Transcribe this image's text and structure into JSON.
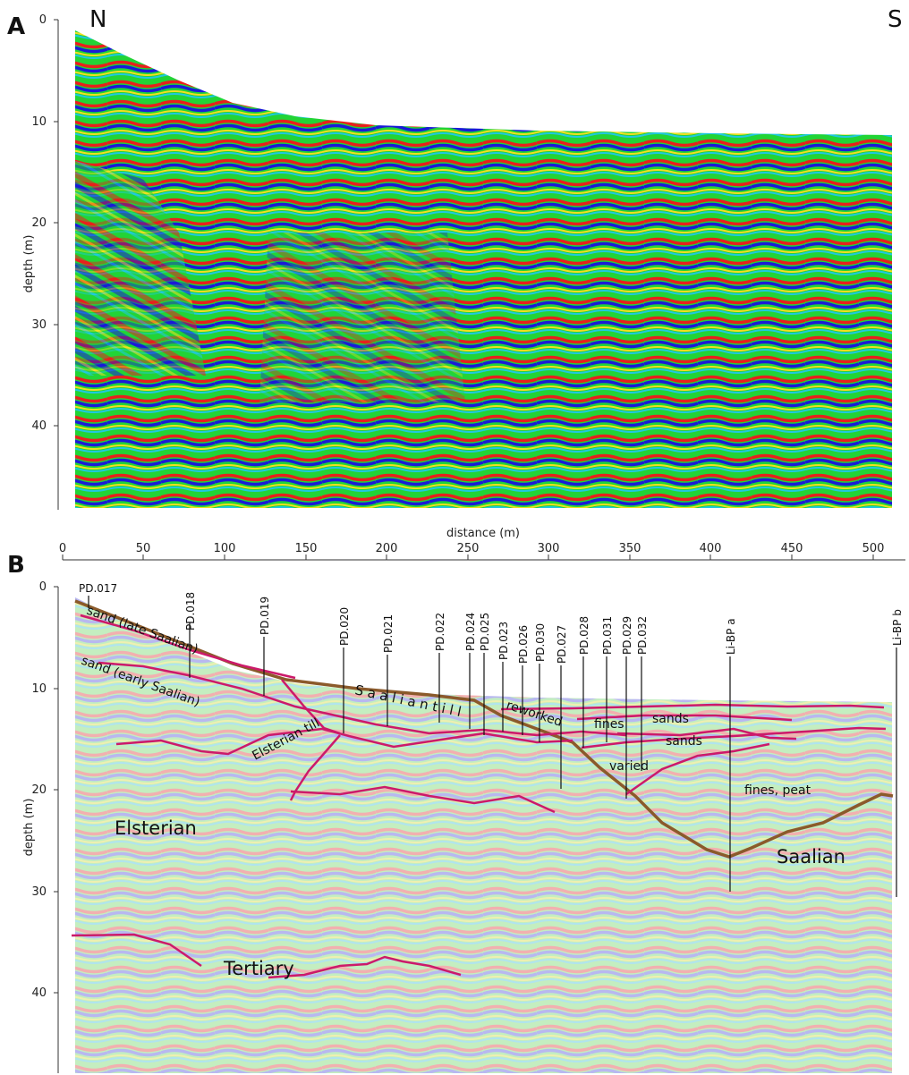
{
  "panel_a": {
    "letter": "A",
    "left_end": "N",
    "right_end": "S",
    "ylabel": "depth (m)",
    "y_ticks": [
      "0",
      "10",
      "20",
      "30",
      "40"
    ]
  },
  "x_axis": {
    "label": "distance (m)",
    "ticks": [
      "0",
      "50",
      "100",
      "150",
      "200",
      "250",
      "300",
      "350",
      "400",
      "450",
      "500"
    ]
  },
  "panel_b": {
    "letter": "B",
    "ylabel": "depth (m)",
    "y_ticks": [
      "0",
      "10",
      "20",
      "30",
      "40"
    ],
    "boreholes": [
      {
        "name": "PD.017"
      },
      {
        "name": "PD.018"
      },
      {
        "name": "PD.019"
      },
      {
        "name": "PD.020"
      },
      {
        "name": "PD.021"
      },
      {
        "name": "PD.022"
      },
      {
        "name": "PD.024"
      },
      {
        "name": "PD.025"
      },
      {
        "name": "PD.023"
      },
      {
        "name": "PD.026"
      },
      {
        "name": "PD.030"
      },
      {
        "name": "PD.027"
      },
      {
        "name": "PD.028"
      },
      {
        "name": "PD.031"
      },
      {
        "name": "PD.029"
      },
      {
        "name": "PD.032"
      },
      {
        "name": "Li-BP a"
      },
      {
        "name": "Li-BP b"
      }
    ],
    "units": {
      "sand_late": "sand (late Saalian)",
      "sand_early": "sand (early Saalian)",
      "saalian_till": "S a a l i a n   t i l l",
      "elsterian_till": "Elsterian till",
      "reworked": "reworked",
      "fines": "fines",
      "sands_1": "sands",
      "sands_2": "sands",
      "varied": "varied",
      "fines_peat": "fines, peat",
      "elsterian": "Elsterian",
      "saalian": "Saalian",
      "tertiary": "Tertiary"
    }
  },
  "colors": {
    "radar_green": "#22d436",
    "radar_red": "#e8201c",
    "radar_blue": "#1a1ad8",
    "radar_yellow": "#f0e020",
    "radar_cyan": "#20c8e0",
    "boundary_brown": "#8b5a2b",
    "interface_magenta": "#cc1a6a"
  }
}
